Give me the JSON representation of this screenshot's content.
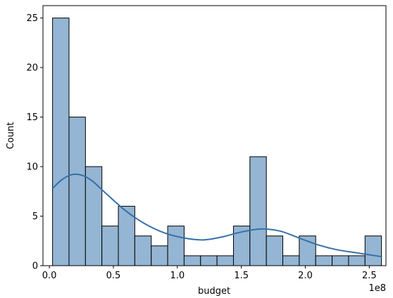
{
  "chart_data": {
    "type": "bar",
    "subtype": "histogram-with-kde",
    "xlabel": "budget",
    "ylabel": "Count",
    "x_offset_text": "1e8",
    "x_unit_multiplier": 100000000,
    "xlim": [
      -0.05,
      2.63
    ],
    "ylim": [
      0,
      26.25
    ],
    "x_ticks": [
      0.0,
      0.5,
      1.0,
      1.5,
      2.0,
      2.5
    ],
    "x_tick_labels": [
      "0.0",
      "0.5",
      "1.0",
      "1.5",
      "2.0",
      "2.5"
    ],
    "y_ticks": [
      0,
      5,
      10,
      15,
      20,
      25
    ],
    "y_tick_labels": [
      "0",
      "5",
      "10",
      "15",
      "20",
      "25"
    ],
    "bin_start": 0.025,
    "bin_width": 0.1285,
    "counts": [
      25,
      15,
      10,
      4,
      6,
      3,
      2,
      4,
      1,
      1,
      1,
      4,
      11,
      3,
      1,
      3,
      1,
      1,
      1,
      3
    ],
    "kde": {
      "x": [
        0.025,
        0.1,
        0.18,
        0.26,
        0.34,
        0.45,
        0.6,
        0.75,
        0.9,
        1.05,
        1.2,
        1.35,
        1.5,
        1.65,
        1.8,
        1.95,
        2.1,
        2.25,
        2.4,
        2.6
      ],
      "y": [
        7.8,
        8.7,
        9.2,
        9.1,
        8.5,
        7.2,
        5.5,
        4.2,
        3.3,
        2.8,
        2.6,
        2.9,
        3.4,
        3.7,
        3.5,
        2.8,
        2.1,
        1.6,
        1.3,
        0.9
      ]
    },
    "colors": {
      "bar_fill": "#94b5d3",
      "bar_edge": "#000000",
      "kde_line": "#3570a8"
    },
    "grid": false,
    "legend": "none"
  }
}
